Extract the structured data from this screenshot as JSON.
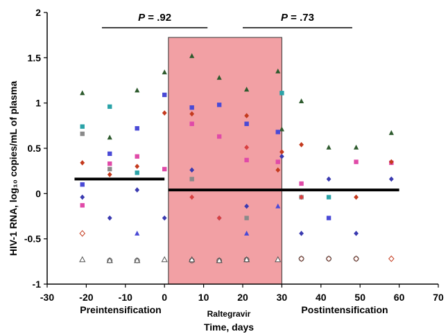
{
  "chart_data": {
    "type": "scatter",
    "ylabel": "HIV-1 RNA, log₁₀ copies/mL of plasma",
    "xlabel": "Time, days",
    "xlim": [
      -30,
      70
    ],
    "ylim": [
      -1,
      2
    ],
    "xticks": [
      "-30",
      "-20",
      "-10",
      "0",
      "10",
      "20",
      "30",
      "40",
      "50",
      "60",
      "70"
    ],
    "yticks": [
      "-1",
      "-0.5",
      "0",
      "0.5",
      "1",
      "1.5",
      "2"
    ],
    "period_labels": {
      "pre": "Preintensification",
      "during": "Raltegravir",
      "post": "Postintensification"
    },
    "shaded_region": {
      "x": [
        1,
        30
      ],
      "color": "#f2a0a4"
    },
    "pvalues": [
      {
        "label": "P = .92",
        "x_range": [
          -16,
          11
        ]
      },
      {
        "label": "P = .73",
        "x_range": [
          20,
          48
        ]
      }
    ],
    "median_lines": [
      {
        "x": [
          -23,
          0
        ],
        "y": 0.16
      },
      {
        "x": [
          1,
          30
        ],
        "y": 0.04
      },
      {
        "x": [
          30,
          60
        ],
        "y": 0.04
      }
    ],
    "series": [
      {
        "marker": "triangle",
        "color": "#2e5b2e",
        "x": [
          -21,
          -14,
          -7,
          0,
          7,
          14,
          21,
          29,
          30,
          35,
          42,
          49,
          58
        ],
        "y": [
          1.11,
          0.62,
          1.14,
          1.34,
          1.52,
          1.28,
          1.15,
          1.35,
          0.71,
          1.02,
          0.51,
          0.51,
          0.67
        ]
      },
      {
        "marker": "square",
        "color": "#2aa3a8",
        "x": [
          -21,
          -14,
          -7,
          30,
          42
        ],
        "y": [
          0.74,
          0.96,
          0.23,
          1.11,
          -0.04
        ]
      },
      {
        "marker": "square",
        "color": "#4a4ad6",
        "x": [
          -21,
          -14,
          -7,
          0,
          7,
          14,
          21,
          29,
          42
        ],
        "y": [
          0.1,
          0.44,
          0.72,
          1.09,
          0.95,
          0.98,
          0.77,
          0.68,
          -0.27
        ]
      },
      {
        "marker": "square",
        "color": "#e04aa8",
        "x": [
          -21,
          -14,
          -7,
          0,
          7,
          14,
          21,
          29,
          35,
          49,
          58
        ],
        "y": [
          -0.13,
          0.33,
          0.41,
          0.27,
          0.77,
          0.63,
          0.37,
          0.35,
          0.11,
          0.35,
          0.34
        ]
      },
      {
        "marker": "square",
        "color": "#8a8a8a",
        "x": [
          -21,
          -14,
          7,
          21,
          35
        ],
        "y": [
          0.66,
          0.27,
          0.16,
          -0.27,
          -0.04
        ]
      },
      {
        "marker": "diamond",
        "color": "#c43a1e",
        "x": [
          -21,
          -14,
          -7,
          0,
          7,
          21,
          29,
          30,
          35,
          49,
          58
        ],
        "y": [
          0.34,
          0.21,
          0.3,
          0.89,
          0.88,
          0.86,
          0.26,
          0.46,
          0.54,
          -0.04,
          0.35
        ]
      },
      {
        "marker": "diamond",
        "color": "#3a3ab0",
        "x": [
          -21,
          -14,
          -7,
          0,
          7,
          14,
          21,
          30,
          35,
          42,
          49,
          58
        ],
        "y": [
          -0.04,
          -0.27,
          0.04,
          -0.27,
          0.26,
          -0.27,
          -0.14,
          0.41,
          -0.44,
          0.16,
          -0.44,
          0.16
        ]
      },
      {
        "marker": "diamond",
        "color": "#d84040",
        "x": [
          7,
          14,
          21,
          35
        ],
        "y": [
          -0.04,
          -0.27,
          0.51,
          -0.04
        ]
      },
      {
        "marker": "triangle",
        "color": "#4a4ad6",
        "x": [
          -7,
          21,
          29
        ],
        "y": [
          -0.44,
          -0.44,
          -0.14
        ]
      },
      {
        "marker": "diamond-open",
        "color": "#c43a1e",
        "x": [
          -21,
          35,
          42,
          49,
          58
        ],
        "y": [
          -0.44,
          -0.72,
          -0.72,
          -0.72,
          -0.72
        ]
      },
      {
        "marker": "triangle-open",
        "color": "#555555",
        "x": [
          -21,
          -14,
          -7,
          0,
          7,
          14,
          21,
          29
        ],
        "y": [
          -0.73,
          -0.74,
          -0.74,
          -0.73,
          -0.73,
          -0.74,
          -0.73,
          -0.73
        ]
      },
      {
        "marker": "circle-open",
        "color": "#555555",
        "x": [
          -14,
          -7,
          7,
          14,
          21,
          35,
          42,
          49
        ],
        "y": [
          -0.74,
          -0.74,
          -0.74,
          -0.74,
          -0.73,
          -0.72,
          -0.72,
          -0.72
        ]
      }
    ]
  }
}
